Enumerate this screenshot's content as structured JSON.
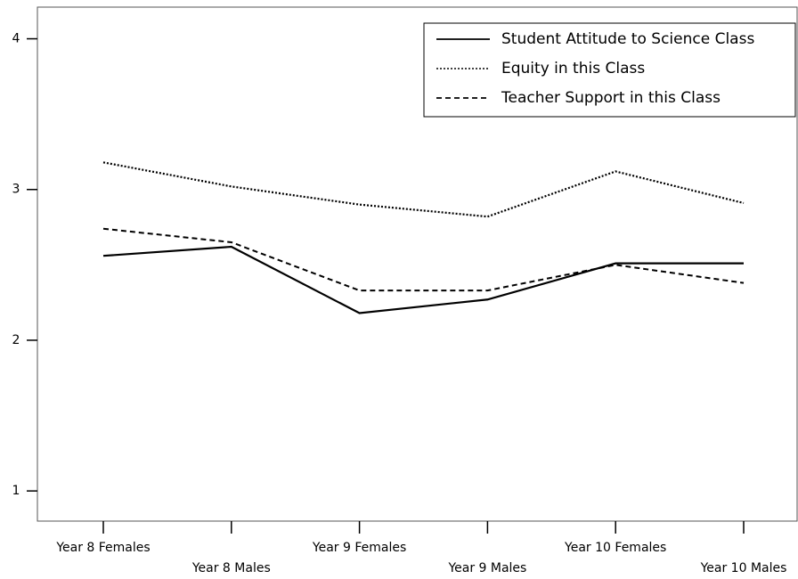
{
  "chart_data": {
    "type": "line",
    "categories": [
      "Year 8 Females",
      "Year 8 Males",
      "Year 9 Females",
      "Year 9 Males",
      "Year 10 Females",
      "Year 10 Males"
    ],
    "series": [
      {
        "name": "Student Attitude to Science Class",
        "color": "#000000",
        "dash": "solid",
        "values": [
          2.56,
          2.62,
          2.18,
          2.27,
          2.51,
          2.51
        ]
      },
      {
        "name": "Equity in this Class",
        "color": "#000000",
        "dash": "dotted",
        "values": [
          3.18,
          3.02,
          2.9,
          2.82,
          3.12,
          2.91
        ]
      },
      {
        "name": "Teacher Support in this Class",
        "color": "#000000",
        "dash": "dashed",
        "values": [
          2.74,
          2.65,
          2.33,
          2.33,
          2.5,
          2.38
        ]
      }
    ],
    "ylim": [
      0.8,
      4.21
    ],
    "yticks": [
      1,
      2,
      3,
      4
    ],
    "grid": false,
    "legend": "top-right"
  }
}
